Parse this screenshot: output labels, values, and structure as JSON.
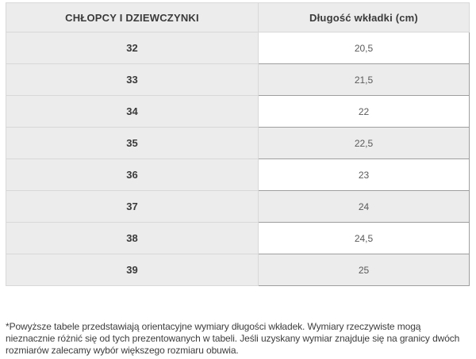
{
  "table": {
    "headers": {
      "sizes_label": "CHŁOPCY I DZIEWCZYNKI",
      "length_label": "Długość wkładki (cm)"
    },
    "rows": [
      {
        "size": "32",
        "length": "20,5"
      },
      {
        "size": "33",
        "length": "21,5"
      },
      {
        "size": "34",
        "length": "22"
      },
      {
        "size": "35",
        "length": "22,5"
      },
      {
        "size": "36",
        "length": "23"
      },
      {
        "size": "37",
        "length": "24"
      },
      {
        "size": "38",
        "length": "24,5"
      },
      {
        "size": "39",
        "length": "25"
      }
    ]
  },
  "footnote": "*Powyższe tabele przedstawiają orientacyjne wymiary długości wkładek. Wymiary rzeczywiste mogą nieznacznie różnić się od tych prezentowanych w tabeli. Jeśli uzyskany wymiar znajduje się na granicy dwóch rozmiarów zalecamy wybór większego rozmiaru obuwia.",
  "colors": {
    "cell_gray": "#ececec",
    "light_border": "#d8d8d8",
    "dark_border": "#9e9e9e",
    "header_text": "#3a3a3a",
    "value_text": "#5a5a5a"
  }
}
